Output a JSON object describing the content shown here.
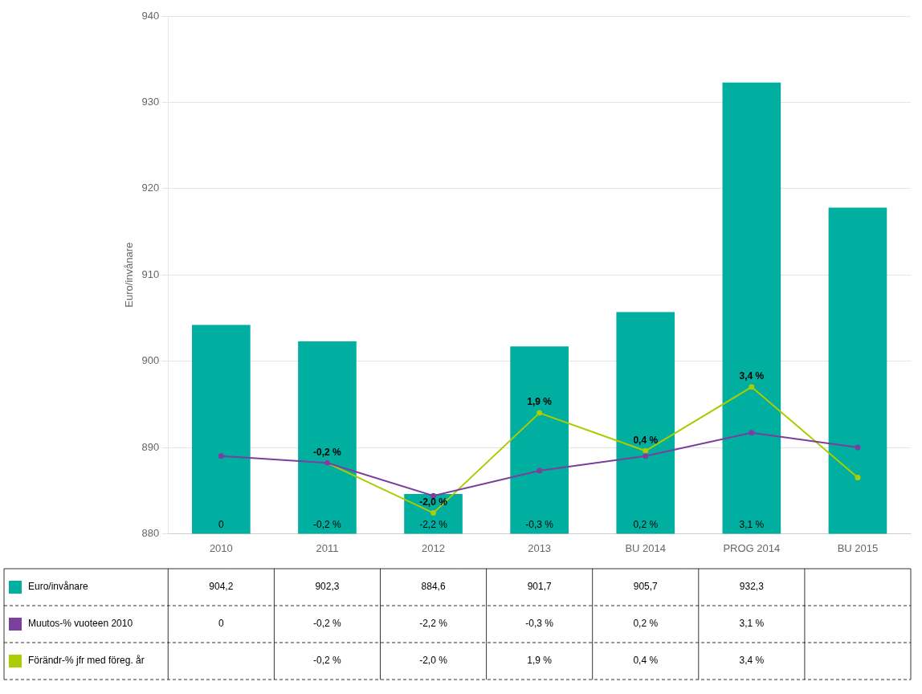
{
  "chart_data": {
    "type": "bar",
    "categories": [
      "2010",
      "2011",
      "2012",
      "2013",
      "BU 2014",
      "PROG 2014",
      "BU 2015"
    ],
    "ylabel": "Euro/invånare",
    "ylim": [
      880,
      940
    ],
    "yticks": [
      880,
      890,
      900,
      910,
      920,
      930,
      940
    ],
    "grid": true,
    "series": [
      {
        "name": "Euro/invånare",
        "type": "bar",
        "color": "#00AFA0",
        "values": [
          904.2,
          902.3,
          884.6,
          901.7,
          905.7,
          932.3,
          917.8
        ],
        "value_labels": [
          "904,2",
          "902,3",
          "884,6",
          "901,7",
          "905,7",
          "932,3",
          null
        ]
      },
      {
        "name": "Muutos-% vuoteen 2010",
        "type": "line",
        "color": "#7B3F9E",
        "marker": "circle",
        "values": [
          889.0,
          888.2,
          884.4,
          887.3,
          889.0,
          891.7,
          890.0
        ],
        "annotations": [
          "0",
          "-0,2 %",
          "-2,2 %",
          "-0,3 %",
          "0,2 %",
          "3,1 %",
          null
        ]
      },
      {
        "name": "Förändr-% jfr med föreg. år",
        "type": "line",
        "color": "#AACC00",
        "marker": "circle",
        "values": [
          null,
          888.2,
          882.4,
          894.0,
          889.6,
          897.0,
          886.5
        ],
        "annotations": [
          null,
          "-0,2 %",
          "-2,0 %",
          "1,9 %",
          "0,4 %",
          "3,4 %",
          null
        ]
      }
    ]
  }
}
